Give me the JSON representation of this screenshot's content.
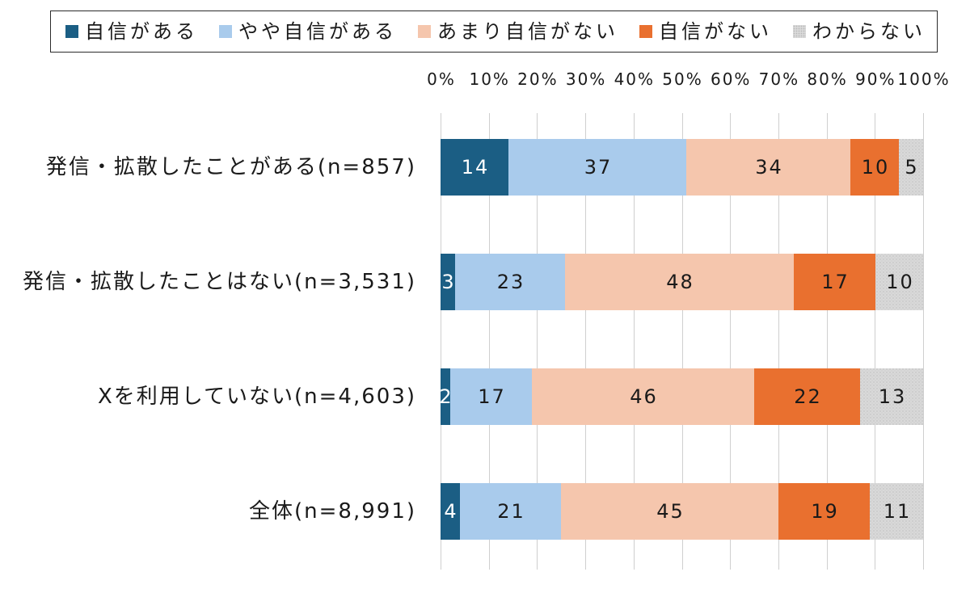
{
  "chart_data": {
    "type": "bar",
    "orientation": "horizontal",
    "stacked": "percent",
    "title": "",
    "xlabel": "",
    "ylabel": "",
    "xlim": [
      0,
      100
    ],
    "xtick_values": [
      0,
      10,
      20,
      30,
      40,
      50,
      60,
      70,
      80,
      90,
      100
    ],
    "xticks": [
      "0%",
      "10%",
      "20%",
      "30%",
      "40%",
      "50%",
      "60%",
      "70%",
      "80%",
      "90%",
      "100%"
    ],
    "grid": true,
    "legend": "top",
    "categories": [
      "発信・拡散したことがある(n=857)",
      "発信・拡散したことはない(n=3,531)",
      "Xを利用していない(n=4,603)",
      "全体(n=8,991)"
    ],
    "series": [
      {
        "name": "自信がある",
        "color": "#1b5e84",
        "label_color": "#ffffff",
        "values": [
          14,
          3,
          2,
          4
        ]
      },
      {
        "name": "やや自信がある",
        "color": "#a9cbec",
        "label_color": "#1a1a1a",
        "values": [
          37,
          23,
          17,
          21
        ]
      },
      {
        "name": "あまり自信がない",
        "color": "#f5c6ad",
        "label_color": "#1a1a1a",
        "values": [
          34,
          48,
          46,
          45
        ]
      },
      {
        "name": "自信がない",
        "color": "#e9702f",
        "label_color": "#1a1a1a",
        "values": [
          10,
          17,
          22,
          19
        ]
      },
      {
        "name": "わからない",
        "color": "#d9d9d9",
        "label_color": "#1a1a1a",
        "pattern": "dots",
        "values": [
          5,
          10,
          13,
          11
        ]
      }
    ]
  }
}
